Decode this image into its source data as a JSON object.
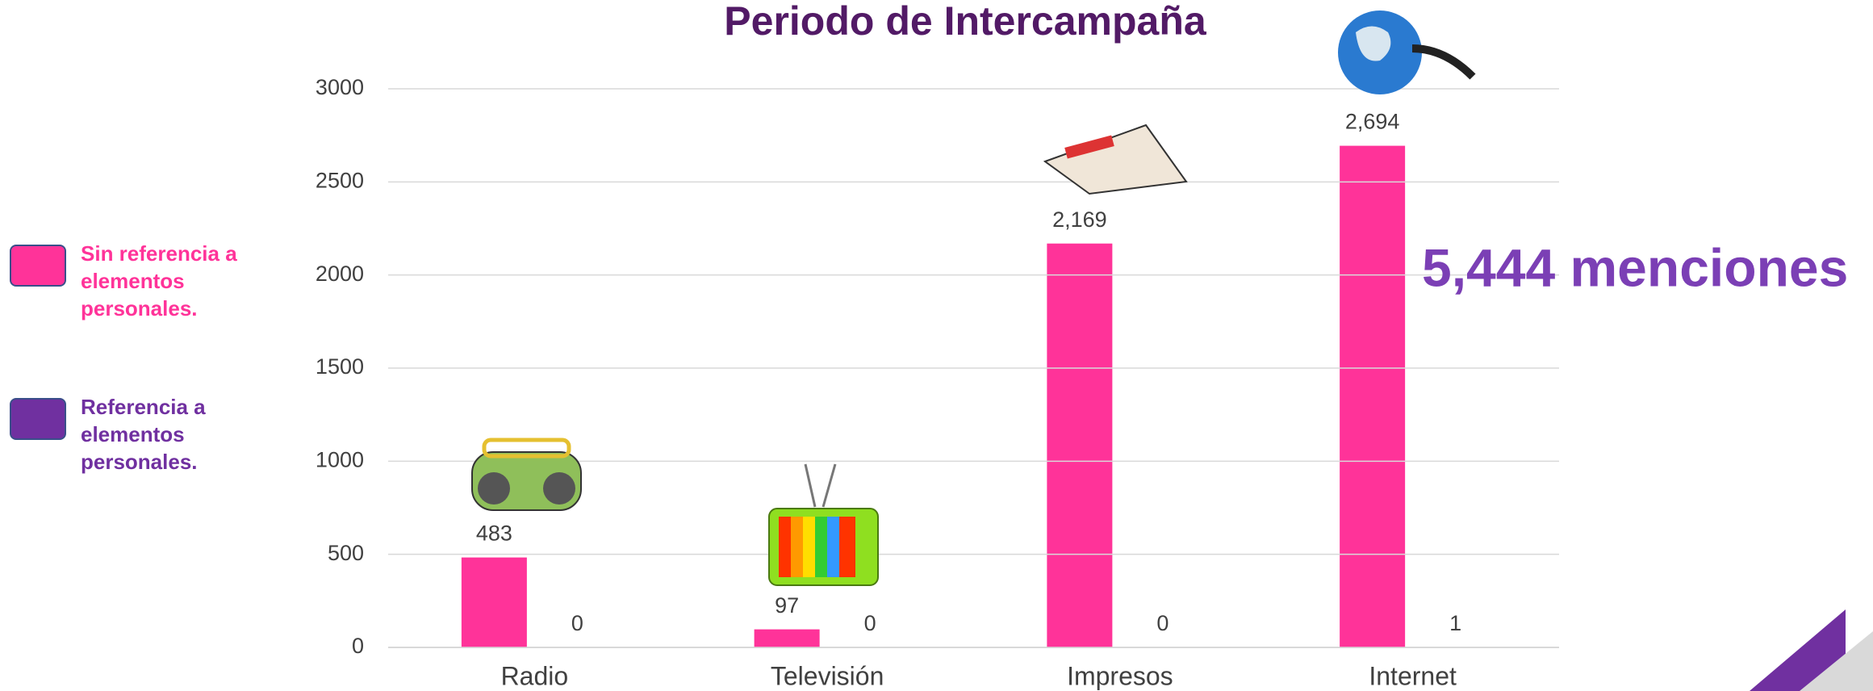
{
  "chart_data": {
    "type": "bar",
    "title": "Periodo de Intercampaña",
    "annotation": "5,444 menciones",
    "categories": [
      "Radio",
      "Televisión",
      "Impresos",
      "Internet"
    ],
    "series": [
      {
        "name": "Sin referencia a elementos personales.",
        "color": "#ff3399",
        "values": [
          483,
          97,
          2169,
          2694
        ],
        "value_labels": [
          "483",
          "97",
          "2,169",
          "2,694"
        ]
      },
      {
        "name": "Referencia a elementos personales.",
        "color": "#7030a0",
        "values": [
          0,
          0,
          0,
          1
        ]
      }
    ],
    "ylim": [
      0,
      3000
    ],
    "yticks": [
      0,
      500,
      1000,
      1500,
      2000,
      2500,
      3000
    ],
    "grid": true,
    "legend": "left"
  }
}
